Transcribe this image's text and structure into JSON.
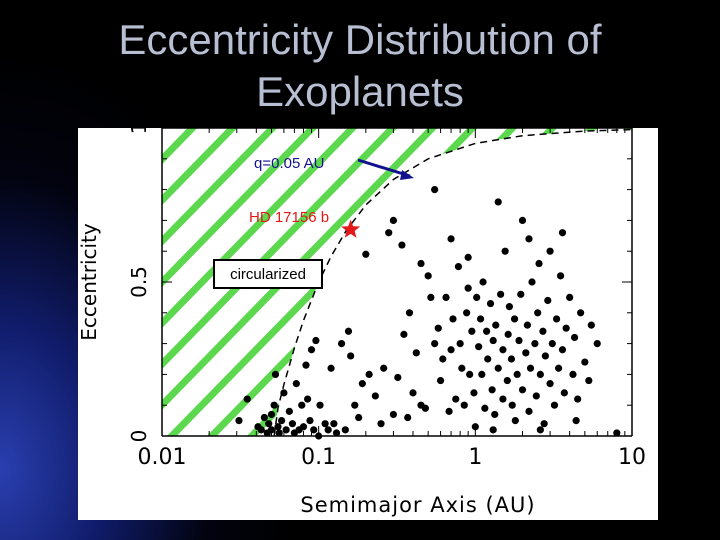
{
  "slide": {
    "title_line1": "Eccentricity Distribution of",
    "title_line2": "Exoplanets"
  },
  "chart_data": {
    "type": "scatter",
    "title": "",
    "xlabel": "Semimajor Axis (AU)",
    "ylabel": "Eccentricity",
    "xscale": "log",
    "xlim": [
      0.01,
      10
    ],
    "ylim": [
      0,
      1
    ],
    "xticks": [
      {
        "value": 0.01,
        "label": "0.01"
      },
      {
        "value": 0.1,
        "label": "0.1"
      },
      {
        "value": 1,
        "label": "1"
      },
      {
        "value": 10,
        "label": "10"
      }
    ],
    "yticks": [
      {
        "value": 0,
        "label": "0"
      },
      {
        "value": 0.5,
        "label": "0.5"
      },
      {
        "value": 1,
        "label": "1"
      }
    ],
    "grid": false,
    "colors": {
      "points": "#000000",
      "hatch": "#5cd84e",
      "star": "#e31818",
      "annotation_blue": "#12128c",
      "annotation_red": "#e31818"
    },
    "annotations": {
      "q_label": "q=0.05 AU",
      "star_label": "HD 17156 b",
      "region_label": "circularized"
    },
    "highlight": {
      "name": "HD 17156 b",
      "x": 0.16,
      "e": 0.67
    },
    "curve": [
      [
        0.052,
        0.0
      ],
      [
        0.055,
        0.091
      ],
      [
        0.06,
        0.167
      ],
      [
        0.07,
        0.286
      ],
      [
        0.08,
        0.375
      ],
      [
        0.1,
        0.5
      ],
      [
        0.12,
        0.583
      ],
      [
        0.15,
        0.667
      ],
      [
        0.2,
        0.75
      ],
      [
        0.3,
        0.833
      ],
      [
        0.5,
        0.9
      ],
      [
        1.0,
        0.95
      ],
      [
        2.0,
        0.975
      ],
      [
        5.0,
        0.99
      ],
      [
        10.0,
        0.995
      ]
    ],
    "points": [
      [
        0.031,
        0.05
      ],
      [
        0.035,
        0.12
      ],
      [
        0.041,
        0.03
      ],
      [
        0.043,
        0.02
      ],
      [
        0.045,
        0.06
      ],
      [
        0.047,
        0.01
      ],
      [
        0.048,
        0.04
      ],
      [
        0.05,
        0.07
      ],
      [
        0.05,
        0.02
      ],
      [
        0.052,
        0.1
      ],
      [
        0.053,
        0.2
      ],
      [
        0.055,
        0.03
      ],
      [
        0.056,
        0.01
      ],
      [
        0.058,
        0.05
      ],
      [
        0.06,
        0.14
      ],
      [
        0.062,
        0.02
      ],
      [
        0.065,
        0.08
      ],
      [
        0.068,
        0.04
      ],
      [
        0.07,
        0.01
      ],
      [
        0.072,
        0.17
      ],
      [
        0.075,
        0.02
      ],
      [
        0.078,
        0.1
      ],
      [
        0.08,
        0.03
      ],
      [
        0.083,
        0.23
      ],
      [
        0.085,
        0.12
      ],
      [
        0.088,
        0.05
      ],
      [
        0.09,
        0.28
      ],
      [
        0.093,
        0.02
      ],
      [
        0.096,
        0.31
      ],
      [
        0.1,
        0.0
      ],
      [
        0.102,
        0.1
      ],
      [
        0.11,
        0.04
      ],
      [
        0.115,
        0.02
      ],
      [
        0.12,
        0.22
      ],
      [
        0.125,
        0.04
      ],
      [
        0.13,
        0.01
      ],
      [
        0.14,
        0.3
      ],
      [
        0.148,
        0.02
      ],
      [
        0.155,
        0.34
      ],
      [
        0.16,
        0.26
      ],
      [
        0.17,
        0.1
      ],
      [
        0.18,
        0.06
      ],
      [
        0.19,
        0.17
      ],
      [
        0.2,
        0.59
      ],
      [
        0.21,
        0.2
      ],
      [
        0.23,
        0.13
      ],
      [
        0.25,
        0.04
      ],
      [
        0.26,
        0.22
      ],
      [
        0.28,
        0.66
      ],
      [
        0.3,
        0.7
      ],
      [
        0.3,
        0.07
      ],
      [
        0.32,
        0.19
      ],
      [
        0.34,
        0.62
      ],
      [
        0.35,
        0.33
      ],
      [
        0.37,
        0.06
      ],
      [
        0.38,
        0.4
      ],
      [
        0.4,
        0.14
      ],
      [
        0.42,
        0.27
      ],
      [
        0.45,
        0.56
      ],
      [
        0.45,
        0.1
      ],
      [
        0.48,
        0.09
      ],
      [
        0.5,
        0.52
      ],
      [
        0.52,
        0.45
      ],
      [
        0.55,
        0.3
      ],
      [
        0.55,
        0.8
      ],
      [
        0.58,
        0.35
      ],
      [
        0.6,
        0.18
      ],
      [
        0.62,
        0.25
      ],
      [
        0.65,
        0.45
      ],
      [
        0.68,
        0.08
      ],
      [
        0.7,
        0.28
      ],
      [
        0.72,
        0.38
      ],
      [
        0.75,
        0.12
      ],
      [
        0.78,
        0.55
      ],
      [
        0.8,
        0.3
      ],
      [
        0.82,
        0.22
      ],
      [
        0.85,
        0.1
      ],
      [
        0.88,
        0.4
      ],
      [
        0.9,
        0.48
      ],
      [
        0.92,
        0.2
      ],
      [
        0.95,
        0.34
      ],
      [
        0.98,
        0.14
      ],
      [
        1.0,
        0.03
      ],
      [
        1.02,
        0.45
      ],
      [
        1.05,
        0.29
      ],
      [
        1.08,
        0.38
      ],
      [
        1.1,
        0.2
      ],
      [
        1.12,
        0.5
      ],
      [
        1.15,
        0.09
      ],
      [
        1.18,
        0.34
      ],
      [
        1.2,
        0.25
      ],
      [
        1.25,
        0.43
      ],
      [
        1.28,
        0.15
      ],
      [
        1.3,
        0.31
      ],
      [
        1.33,
        0.07
      ],
      [
        1.35,
        0.36
      ],
      [
        1.4,
        0.22
      ],
      [
        1.45,
        0.46
      ],
      [
        1.5,
        0.28
      ],
      [
        1.5,
        0.12
      ],
      [
        1.55,
        0.6
      ],
      [
        1.6,
        0.18
      ],
      [
        1.62,
        0.33
      ],
      [
        1.65,
        0.42
      ],
      [
        1.7,
        0.25
      ],
      [
        1.72,
        0.1
      ],
      [
        1.78,
        0.38
      ],
      [
        1.8,
        0.05
      ],
      [
        1.85,
        0.2
      ],
      [
        1.9,
        0.31
      ],
      [
        1.95,
        0.46
      ],
      [
        2.0,
        0.7
      ],
      [
        2.0,
        0.15
      ],
      [
        2.1,
        0.27
      ],
      [
        2.15,
        0.36
      ],
      [
        2.2,
        0.08
      ],
      [
        2.25,
        0.22
      ],
      [
        2.3,
        0.5
      ],
      [
        2.4,
        0.3
      ],
      [
        2.45,
        0.13
      ],
      [
        2.5,
        0.4
      ],
      [
        2.55,
        0.56
      ],
      [
        2.6,
        0.2
      ],
      [
        2.7,
        0.34
      ],
      [
        2.75,
        0.04
      ],
      [
        2.8,
        0.26
      ],
      [
        2.9,
        0.44
      ],
      [
        3.0,
        0.6
      ],
      [
        3.0,
        0.17
      ],
      [
        3.1,
        0.3
      ],
      [
        3.2,
        0.1
      ],
      [
        3.3,
        0.38
      ],
      [
        3.4,
        0.22
      ],
      [
        3.5,
        0.52
      ],
      [
        3.6,
        0.28
      ],
      [
        3.7,
        0.14
      ],
      [
        3.8,
        0.35
      ],
      [
        4.0,
        0.45
      ],
      [
        4.2,
        0.2
      ],
      [
        4.3,
        0.32
      ],
      [
        4.5,
        0.12
      ],
      [
        4.7,
        0.4
      ],
      [
        5.0,
        0.24
      ],
      [
        5.3,
        0.18
      ],
      [
        5.5,
        0.36
      ],
      [
        6.0,
        0.3
      ],
      [
        3.6,
        0.66
      ],
      [
        2.2,
        0.64
      ],
      [
        1.4,
        0.76
      ],
      [
        0.9,
        0.58
      ],
      [
        0.7,
        0.64
      ],
      [
        1.3,
        0.02
      ],
      [
        2.6,
        0.02
      ],
      [
        4.4,
        0.05
      ],
      [
        8.0,
        0.01
      ]
    ]
  }
}
